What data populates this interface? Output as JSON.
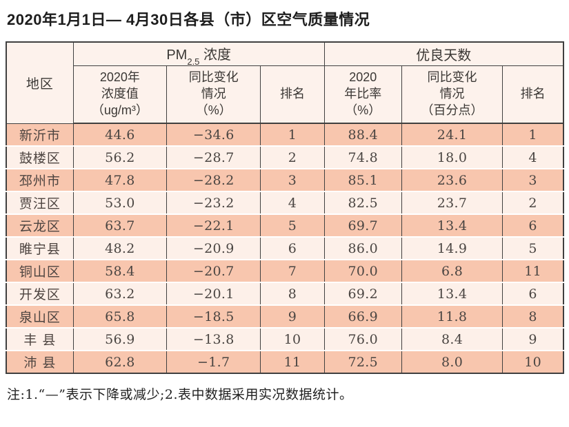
{
  "title": "2020年1月1日— 4月30日各县（市）区空气质量情况",
  "table": {
    "region_header": "地区",
    "pm_group": {
      "base": "PM",
      "sub": "2.5",
      "rest": " 浓度"
    },
    "good_group": "优良天数",
    "pm_cols": [
      "2020年\n浓度值\n（ug/m³）",
      "同比变化\n情况\n（%）",
      "排名"
    ],
    "good_cols": [
      "2020\n年比率\n（%）",
      "同比变化\n情况\n（百分点）",
      "排名"
    ],
    "rows": [
      {
        "region": "新沂市",
        "pm_value": "44.6",
        "pm_change": "−34.6",
        "pm_rank": "1",
        "good_ratio": "88.4",
        "good_change": "24.1",
        "good_rank": "1"
      },
      {
        "region": "鼓楼区",
        "pm_value": "56.2",
        "pm_change": "−28.7",
        "pm_rank": "2",
        "good_ratio": "74.8",
        "good_change": "18.0",
        "good_rank": "4"
      },
      {
        "region": "邳州市",
        "pm_value": "47.8",
        "pm_change": "−28.2",
        "pm_rank": "3",
        "good_ratio": "85.1",
        "good_change": "23.6",
        "good_rank": "3"
      },
      {
        "region": "贾汪区",
        "pm_value": "53.0",
        "pm_change": "−23.2",
        "pm_rank": "4",
        "good_ratio": "82.5",
        "good_change": "23.7",
        "good_rank": "2"
      },
      {
        "region": "云龙区",
        "pm_value": "63.7",
        "pm_change": "−22.1",
        "pm_rank": "5",
        "good_ratio": "69.7",
        "good_change": "13.4",
        "good_rank": "6"
      },
      {
        "region": "睢宁县",
        "pm_value": "48.2",
        "pm_change": "−20.9",
        "pm_rank": "6",
        "good_ratio": "86.0",
        "good_change": "14.9",
        "good_rank": "5"
      },
      {
        "region": "铜山区",
        "pm_value": "58.4",
        "pm_change": "−20.7",
        "pm_rank": "7",
        "good_ratio": "70.0",
        "good_change": "6.8",
        "good_rank": "11"
      },
      {
        "region": "开发区",
        "pm_value": "63.2",
        "pm_change": "−20.1",
        "pm_rank": "8",
        "good_ratio": "69.2",
        "good_change": "13.4",
        "good_rank": "6"
      },
      {
        "region": "泉山区",
        "pm_value": "65.8",
        "pm_change": "−18.5",
        "pm_rank": "9",
        "good_ratio": "66.9",
        "good_change": "11.8",
        "good_rank": "8"
      },
      {
        "region": "丰 县",
        "pm_value": "56.9",
        "pm_change": "−13.8",
        "pm_rank": "10",
        "good_ratio": "76.0",
        "good_change": "8.4",
        "good_rank": "9"
      },
      {
        "region": "沛 县",
        "pm_value": "62.8",
        "pm_change": "−1.7",
        "pm_rank": "11",
        "good_ratio": "72.5",
        "good_change": "8.0",
        "good_rank": "10"
      }
    ]
  },
  "footnote": "注:1.“—”表示下降或减少;2.表中数据采用实况数据统计。",
  "colors": {
    "row-odd": "#f8c6ae",
    "row-even": "#fdf0e9",
    "header-bg": "#fdf2ec",
    "border": "#3f3f3f",
    "cell-text": "#4a4542",
    "title-text": "#1d1d1d"
  }
}
